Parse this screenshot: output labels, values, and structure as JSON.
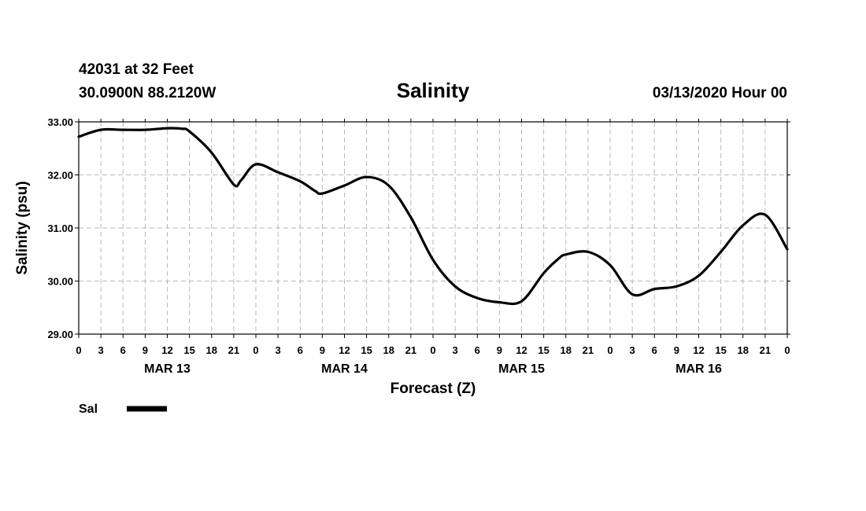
{
  "header": {
    "station_line": "42031 at 32 Feet",
    "position_line": "30.0900N 88.2120W",
    "date_line": "03/13/2020 Hour 00"
  },
  "chart_data": {
    "type": "line",
    "title": "Salinity",
    "xlabel": "Forecast (Z)",
    "ylabel": "Salinity (psu)",
    "ylim": [
      29.0,
      33.0
    ],
    "yticks": [
      "29.00",
      "30.00",
      "31.00",
      "32.00",
      "33.00"
    ],
    "xlim_hours": [
      0,
      96
    ],
    "xtick_labels": [
      "0",
      "3",
      "6",
      "9",
      "12",
      "15",
      "18",
      "21",
      "0",
      "3",
      "6",
      "9",
      "12",
      "15",
      "18",
      "21",
      "0",
      "3",
      "6",
      "9",
      "12",
      "15",
      "18",
      "21",
      "0",
      "3",
      "6",
      "9",
      "12",
      "15",
      "18",
      "21",
      "0"
    ],
    "day_labels": [
      "MAR 13",
      "MAR 14",
      "MAR 15",
      "MAR 16"
    ],
    "grid": true,
    "legend_position": "bottom-left",
    "series": [
      {
        "name": "Sal",
        "color": "#000000",
        "x": [
          0,
          3,
          6,
          9,
          12,
          14,
          15,
          18,
          21,
          22,
          24,
          27,
          30,
          32,
          33,
          36,
          39,
          42,
          45,
          48,
          51,
          54,
          57,
          60,
          63,
          65,
          66,
          69,
          72,
          75,
          78,
          81,
          84,
          87,
          90,
          93,
          96
        ],
        "values": [
          32.72,
          32.85,
          32.85,
          32.85,
          32.88,
          32.87,
          32.82,
          32.42,
          31.82,
          31.9,
          32.2,
          32.05,
          31.88,
          31.7,
          31.65,
          31.8,
          31.96,
          31.8,
          31.2,
          30.4,
          29.9,
          29.68,
          29.6,
          29.62,
          30.15,
          30.42,
          30.5,
          30.55,
          30.3,
          29.75,
          29.85,
          29.9,
          30.1,
          30.55,
          31.05,
          31.25,
          30.6
        ]
      }
    ]
  }
}
